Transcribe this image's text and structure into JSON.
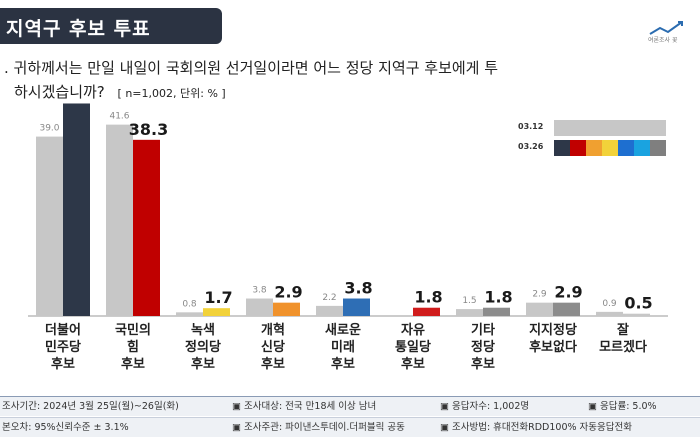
{
  "header": {
    "title": "지역구 후보 투표",
    "logo_text": "여론조사 꽃"
  },
  "question": {
    "line1": ". 귀하께서는 만일 내일이 국회의원 선거일이라면 어느 정당 지역구 후보에게 투",
    "line2": "하시겠습니까?",
    "sample": "[ n=1,002, 단위: % ]"
  },
  "legend": {
    "items": [
      {
        "label": "03.12",
        "colors": [
          "#c7c7c7",
          "#c7c7c7",
          "#c7c7c7",
          "#c7c7c7",
          "#c7c7c7",
          "#c7c7c7",
          "#c7c7c7"
        ]
      },
      {
        "label": "03.26",
        "colors": [
          "#2d3748",
          "#c00000",
          "#f0a030",
          "#f2d23a",
          "#1e6fd0",
          "#1aa3e0",
          "#7f7f7f"
        ]
      }
    ]
  },
  "chart_data": {
    "type": "bar",
    "categories": [
      [
        "더불어",
        "민주당",
        "후보"
      ],
      [
        "국민의",
        "힘",
        "후보"
      ],
      [
        "녹색",
        "정의당",
        "후보"
      ],
      [
        "개혁",
        "신당",
        "후보"
      ],
      [
        "새로운",
        "미래",
        "후보"
      ],
      [
        "자유",
        "통일당",
        "후보"
      ],
      [
        "기타",
        "정당",
        "후보"
      ],
      [
        "지지정당",
        "후보없다"
      ],
      [
        "잘",
        "모르겠다"
      ]
    ],
    "series": [
      {
        "name": "03.12",
        "values": [
          39.0,
          41.6,
          0.8,
          3.8,
          2.2,
          null,
          1.5,
          2.9,
          0.9
        ],
        "color": "#c7c7c7"
      },
      {
        "name": "03.26",
        "values": [
          46.2,
          38.3,
          1.7,
          2.9,
          3.8,
          1.8,
          1.8,
          2.9,
          0.5
        ],
        "colors": [
          "#2d3748",
          "#c00000",
          "#f2d23a",
          "#f0922c",
          "#2e6eb5",
          "#d01c1c",
          "#8c8c8c",
          "#8c8c8c",
          "#c7c7c7"
        ]
      }
    ],
    "ylim": [
      0,
      50
    ]
  },
  "footer": {
    "row1": [
      "조사기간: 2024년 3월 25일(월)~26일(화)",
      "▣ 조사대상: 전국 만18세 이상 남녀",
      "▣ 응답자수: 1,002명",
      "▣ 응답률: 5.0%"
    ],
    "row2": [
      "본오차: 95%신뢰수준 ± 3.1%",
      "▣ 조사주관: 파이낸스투데이.더퍼블릭 공동",
      "▣ 조사방법: 휴대전화RDD100% 자동응답전화"
    ]
  }
}
